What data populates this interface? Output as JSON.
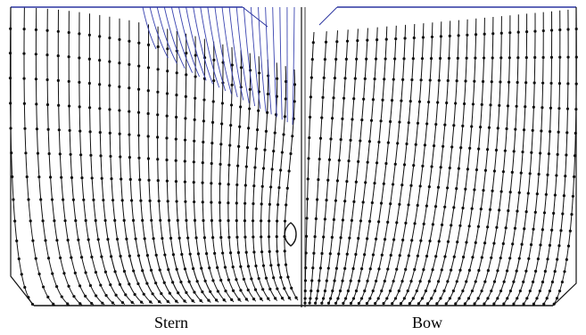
{
  "labels": {
    "stern": "Stern",
    "bow": "Bow"
  },
  "colors": {
    "line": "#111111",
    "deck_blue": "#2b35a0",
    "upper_stern_lines": "#3a44b0",
    "dots": "#111111",
    "background": "#ffffff"
  }
}
